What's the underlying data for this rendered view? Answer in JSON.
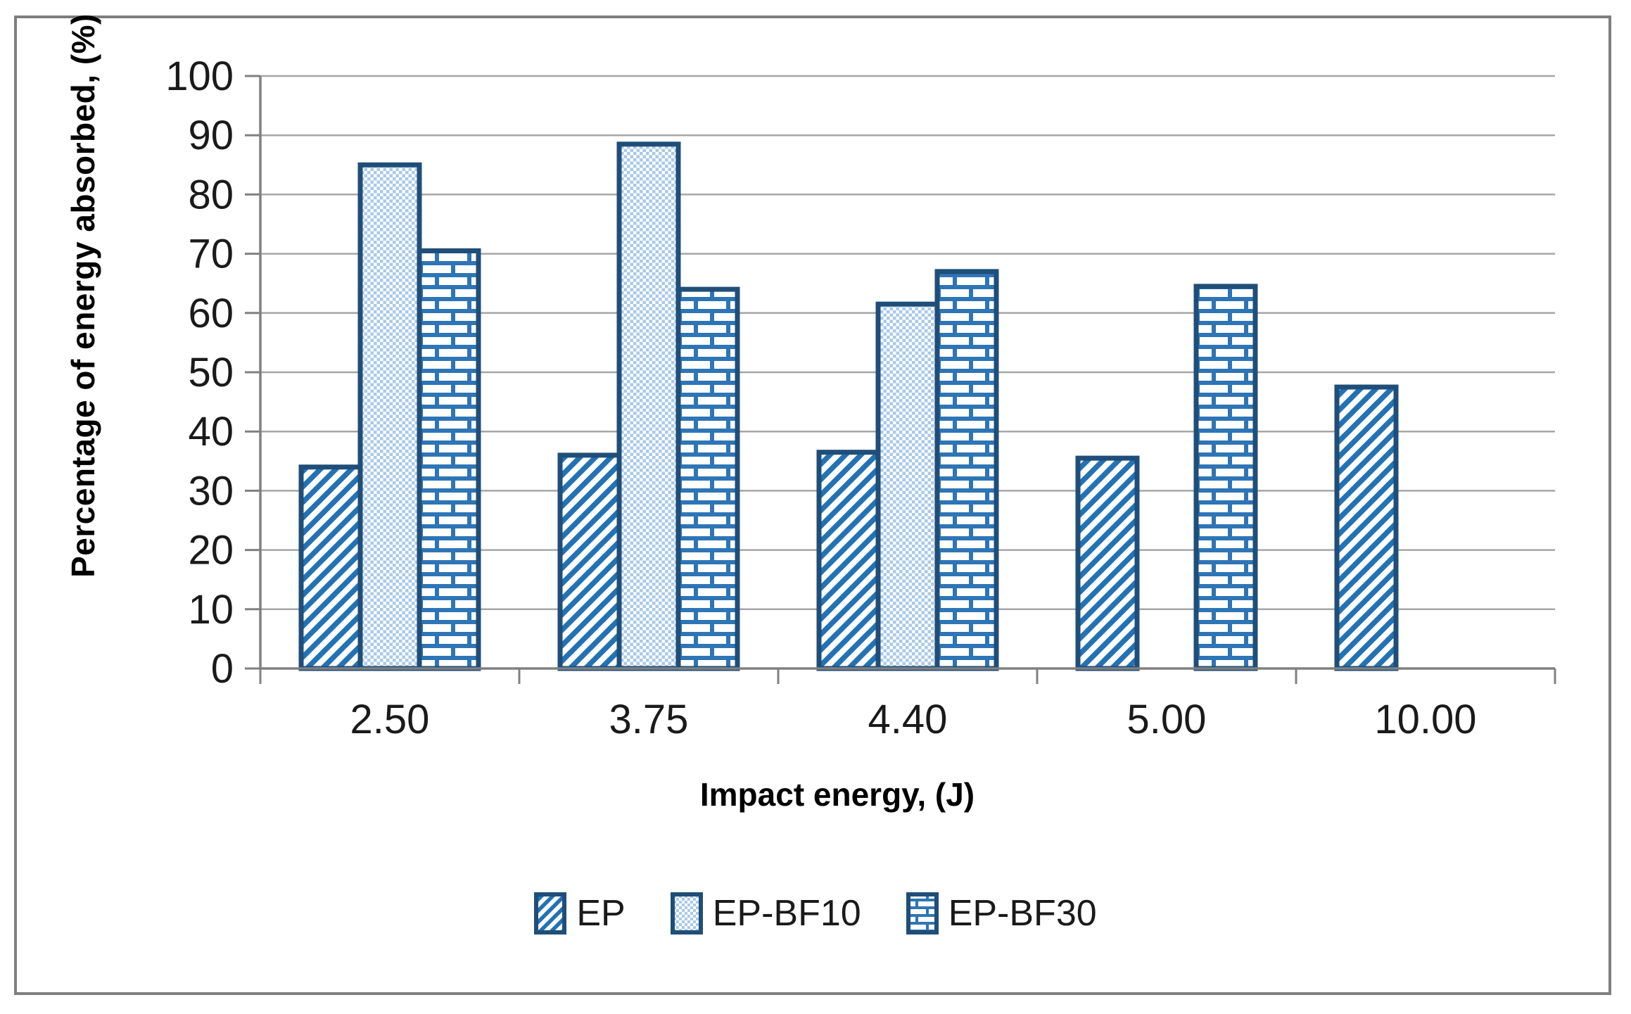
{
  "figure": {
    "background": "#ffffff",
    "border_color": "#7f7f7f"
  },
  "chart_data": {
    "type": "bar",
    "title": "",
    "xlabel": "Impact energy, (J)",
    "ylabel": "Percentage of energy absorbed, (%)",
    "categories": [
      "2.50",
      "3.75",
      "4.40",
      "5.00",
      "10.00"
    ],
    "series": [
      {
        "name": "EP",
        "pattern": "diagonal-hatch",
        "values": [
          34,
          36,
          36.5,
          35.5,
          47.5
        ]
      },
      {
        "name": "EP-BF10",
        "pattern": "dots",
        "values": [
          85,
          88.5,
          61.5,
          null,
          null
        ]
      },
      {
        "name": "EP-BF30",
        "pattern": "bricks",
        "values": [
          70.5,
          64,
          67,
          64.5,
          null
        ]
      }
    ],
    "ylim": [
      0,
      100
    ],
    "ytick_step": 10,
    "yticks": [
      0,
      10,
      20,
      30,
      40,
      50,
      60,
      70,
      80,
      90,
      100
    ],
    "ytick_labels": [
      "0",
      "10",
      "20",
      "30",
      "40",
      "50",
      "60",
      "70",
      "80",
      "90",
      "100"
    ],
    "grid": "horizontal",
    "legend_position": "bottom",
    "colors": {
      "bar_border": "#1f4e79",
      "stripe_blue": "#2272b4",
      "dot_light_blue": "#a9c9e9",
      "brick_blue": "#2e75b6",
      "gridline": "#a6a6a6",
      "axis_line": "#808080",
      "tick_text": "#1a1a1a"
    }
  }
}
